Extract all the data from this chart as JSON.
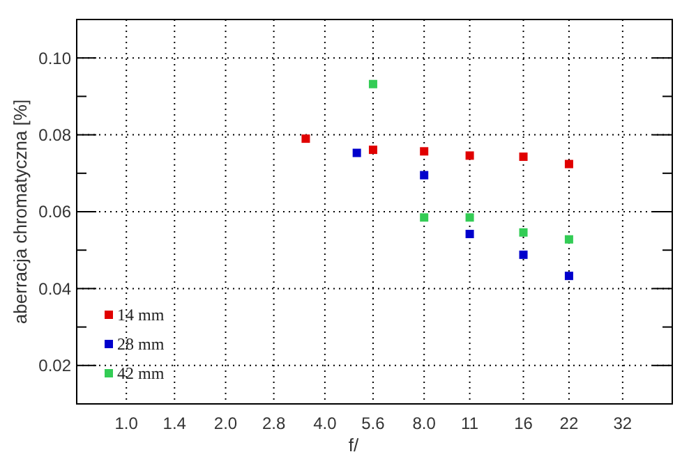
{
  "chart_data": {
    "type": "scatter",
    "xlabel": "f/",
    "ylabel": "aberracja chromatyczna [%]",
    "log": "x",
    "xlim": [
      0.707,
      45.25
    ],
    "xticks": [
      {
        "value": 1,
        "label": "1.0"
      },
      1.4,
      {
        "value": 2,
        "label": "2.0"
      },
      2.8,
      {
        "value": 4,
        "label": "4.0"
      },
      5.6,
      {
        "value": 8,
        "label": "8.0"
      },
      11,
      16,
      22,
      32
    ],
    "ylim": [
      0.01,
      0.11
    ],
    "yticks": [
      {
        "value": 0.02,
        "label": "0.02"
      },
      {
        "value": 0.03,
        "label": null
      },
      {
        "value": 0.04,
        "label": "0.04"
      },
      {
        "value": 0.05,
        "label": null
      },
      {
        "value": 0.06,
        "label": "0.06"
      },
      {
        "value": 0.07,
        "label": null
      },
      {
        "value": 0.08,
        "label": "0.08"
      },
      {
        "value": 0.09,
        "label": null
      },
      {
        "value": 0.1,
        "label": "0.10"
      }
    ],
    "grid": true,
    "legend": "bottom left",
    "marker": "square",
    "series": [
      {
        "name": "14 mm",
        "color": "#e00000",
        "x": [
          3.5,
          5.6,
          8,
          11,
          16,
          22
        ],
        "values": [
          0.079,
          0.0761,
          0.0757,
          0.0746,
          0.0743,
          0.0724
        ]
      },
      {
        "name": "28 mm",
        "color": "#0000cc",
        "x": [
          5,
          8,
          11,
          16,
          22
        ],
        "values": [
          0.0753,
          0.0695,
          0.0542,
          0.0488,
          0.0433
        ]
      },
      {
        "name": "42 mm",
        "color": "#33cc55",
        "x": [
          5.6,
          8,
          11,
          16,
          22
        ],
        "values": [
          0.0932,
          0.0585,
          0.0585,
          0.0546,
          0.0528
        ]
      }
    ]
  }
}
